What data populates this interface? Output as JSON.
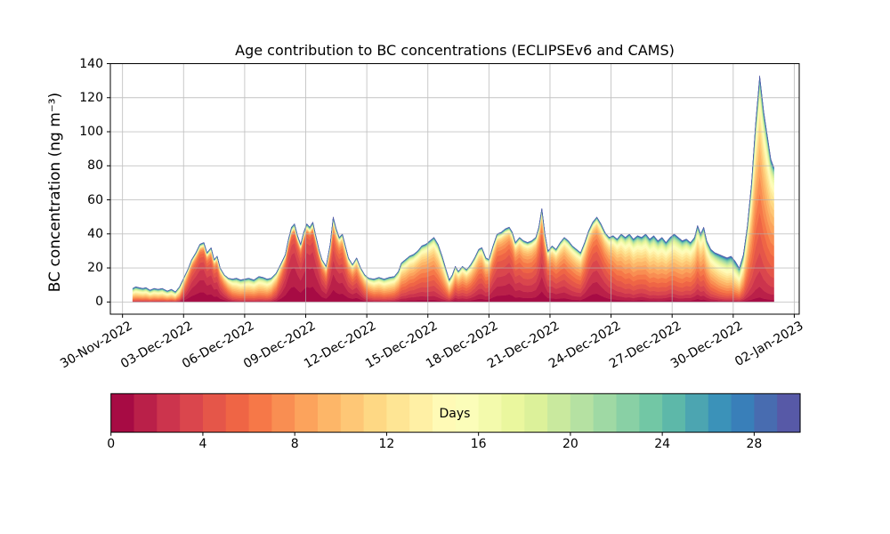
{
  "title": "Age contribution to BC concentrations (ECLIPSEv6 and CAMS)",
  "axes": {
    "ylabel": "BC concentration (ng m⁻³)",
    "yticks": [
      0,
      20,
      40,
      60,
      80,
      100,
      120,
      140
    ],
    "ylim": [
      -7.2,
      140
    ],
    "xlim_days": [
      -0.6,
      33.24
    ],
    "xticks": [
      {
        "day": 0,
        "label": "30-Nov-2022"
      },
      {
        "day": 3,
        "label": "03-Dec-2022"
      },
      {
        "day": 6,
        "label": "06-Dec-2022"
      },
      {
        "day": 9,
        "label": "09-Dec-2022"
      },
      {
        "day": 12,
        "label": "12-Dec-2022"
      },
      {
        "day": 15,
        "label": "15-Dec-2022"
      },
      {
        "day": 18,
        "label": "18-Dec-2022"
      },
      {
        "day": 21,
        "label": "21-Dec-2022"
      },
      {
        "day": 24,
        "label": "24-Dec-2022"
      },
      {
        "day": 27,
        "label": "27-Dec-2022"
      },
      {
        "day": 30,
        "label": "30-Dec-2022"
      },
      {
        "day": 33,
        "label": "02-Jan-2023"
      }
    ],
    "grid_color": "#b0b0b0",
    "spine_color": "#000000"
  },
  "colorbar": {
    "label": "Days",
    "ticks": [
      0,
      4,
      8,
      12,
      16,
      20,
      24,
      28
    ],
    "vmin": 0,
    "vmax": 30,
    "n_segments": 30
  },
  "colormap": {
    "name": "Spectral",
    "anchors": [
      "#9e0142",
      "#d53e4f",
      "#f46d43",
      "#fdae61",
      "#fee08b",
      "#ffffbf",
      "#e6f598",
      "#abdda4",
      "#66c2a5",
      "#3288bd",
      "#5e4fa2"
    ]
  },
  "chart_data": {
    "type": "area",
    "stacked": true,
    "n_age_bins": 30,
    "age_bin_width_days": 1,
    "stack_order": "youngest (0 days, red) at bottom to oldest (30 days, blue) on top",
    "x_unit": "days since 30-Nov-2022 00:00",
    "y_unit": "ng m-3",
    "samples_columns": [
      "day_offset",
      "total_BC_ng_m3",
      "fresh_fraction_age_0_4d",
      "mean_age_days_of_bulk"
    ],
    "samples": [
      [
        0.5,
        8,
        0.01,
        13
      ],
      [
        0.65,
        9,
        0.01,
        13
      ],
      [
        0.8,
        8.5,
        0.02,
        13
      ],
      [
        1.0,
        8,
        0.02,
        13
      ],
      [
        1.15,
        8.5,
        0.02,
        13
      ],
      [
        1.35,
        7,
        0.02,
        13
      ],
      [
        1.55,
        8,
        0.02,
        13
      ],
      [
        1.75,
        7.5,
        0.02,
        13
      ],
      [
        1.95,
        8,
        0.02,
        13
      ],
      [
        2.2,
        6.5,
        0.02,
        13
      ],
      [
        2.4,
        7.5,
        0.02,
        13
      ],
      [
        2.6,
        6,
        0.02,
        13
      ],
      [
        2.8,
        9,
        0.05,
        11
      ],
      [
        3.0,
        14,
        0.2,
        8
      ],
      [
        3.2,
        19,
        0.35,
        6
      ],
      [
        3.4,
        25,
        0.45,
        5
      ],
      [
        3.6,
        29,
        0.5,
        4.5
      ],
      [
        3.8,
        34,
        0.52,
        4
      ],
      [
        4.0,
        35,
        0.5,
        4
      ],
      [
        4.15,
        29,
        0.45,
        4.5
      ],
      [
        4.35,
        32,
        0.45,
        4.5
      ],
      [
        4.5,
        25,
        0.4,
        5
      ],
      [
        4.65,
        27,
        0.38,
        5
      ],
      [
        4.8,
        20,
        0.3,
        6
      ],
      [
        5.0,
        16,
        0.22,
        7
      ],
      [
        5.2,
        14,
        0.12,
        8.5
      ],
      [
        5.4,
        13.5,
        0.05,
        10
      ],
      [
        5.6,
        14,
        0.03,
        11
      ],
      [
        5.8,
        13,
        0.02,
        11
      ],
      [
        6.0,
        13.5,
        0.02,
        11
      ],
      [
        6.2,
        14,
        0.02,
        11
      ],
      [
        6.45,
        13,
        0.02,
        11
      ],
      [
        6.7,
        15,
        0.02,
        11
      ],
      [
        6.9,
        14.5,
        0.02,
        11
      ],
      [
        7.1,
        13.5,
        0.02,
        11
      ],
      [
        7.3,
        14,
        0.03,
        10
      ],
      [
        7.55,
        17,
        0.1,
        8
      ],
      [
        7.8,
        23,
        0.3,
        6
      ],
      [
        8.0,
        28,
        0.45,
        4.5
      ],
      [
        8.15,
        37,
        0.55,
        3.5
      ],
      [
        8.3,
        44,
        0.58,
        3
      ],
      [
        8.45,
        46,
        0.58,
        3
      ],
      [
        8.6,
        39,
        0.55,
        3.5
      ],
      [
        8.75,
        34,
        0.5,
        4
      ],
      [
        8.9,
        41,
        0.55,
        3.5
      ],
      [
        9.05,
        46,
        0.58,
        3
      ],
      [
        9.2,
        44,
        0.55,
        3
      ],
      [
        9.35,
        47,
        0.58,
        3
      ],
      [
        9.5,
        39,
        0.5,
        3.5
      ],
      [
        9.65,
        31,
        0.45,
        4
      ],
      [
        9.8,
        25,
        0.35,
        5
      ],
      [
        10.0,
        21,
        0.3,
        6
      ],
      [
        10.2,
        34,
        0.4,
        5
      ],
      [
        10.35,
        50,
        0.45,
        4.5
      ],
      [
        10.5,
        43,
        0.4,
        5
      ],
      [
        10.65,
        38,
        0.38,
        5
      ],
      [
        10.8,
        40,
        0.38,
        5
      ],
      [
        10.95,
        33,
        0.35,
        5.5
      ],
      [
        11.1,
        26,
        0.3,
        6
      ],
      [
        11.3,
        22,
        0.28,
        6.5
      ],
      [
        11.5,
        26,
        0.3,
        6.5
      ],
      [
        11.7,
        20,
        0.22,
        7
      ],
      [
        11.9,
        16,
        0.12,
        8
      ],
      [
        12.1,
        14,
        0.06,
        9
      ],
      [
        12.35,
        13.5,
        0.04,
        10
      ],
      [
        12.6,
        14.5,
        0.03,
        10
      ],
      [
        12.85,
        13.5,
        0.03,
        10.5
      ],
      [
        13.1,
        14.5,
        0.04,
        10.5
      ],
      [
        13.35,
        15,
        0.05,
        10
      ],
      [
        13.55,
        18,
        0.08,
        9.5
      ],
      [
        13.7,
        23,
        0.1,
        9
      ],
      [
        13.9,
        25,
        0.1,
        9
      ],
      [
        14.1,
        27,
        0.12,
        8.5
      ],
      [
        14.3,
        28,
        0.12,
        8.5
      ],
      [
        14.5,
        30,
        0.12,
        8
      ],
      [
        14.7,
        33,
        0.12,
        8
      ],
      [
        14.9,
        34,
        0.1,
        8
      ],
      [
        15.1,
        36,
        0.1,
        8
      ],
      [
        15.3,
        38,
        0.1,
        8
      ],
      [
        15.5,
        34,
        0.08,
        8.5
      ],
      [
        15.7,
        27,
        0.06,
        9
      ],
      [
        15.9,
        19,
        0.05,
        9.5
      ],
      [
        16.05,
        13,
        0.05,
        10
      ],
      [
        16.2,
        16,
        0.1,
        9
      ],
      [
        16.35,
        21,
        0.15,
        8
      ],
      [
        16.5,
        18,
        0.12,
        8
      ],
      [
        16.7,
        21,
        0.12,
        8
      ],
      [
        16.9,
        19,
        0.1,
        8
      ],
      [
        17.1,
        22,
        0.12,
        8
      ],
      [
        17.3,
        26,
        0.15,
        7.5
      ],
      [
        17.5,
        31,
        0.18,
        7
      ],
      [
        17.65,
        32,
        0.18,
        7
      ],
      [
        17.85,
        26,
        0.15,
        7.5
      ],
      [
        18.0,
        25,
        0.18,
        7
      ],
      [
        18.2,
        33,
        0.25,
        6
      ],
      [
        18.4,
        40,
        0.28,
        5.5
      ],
      [
        18.6,
        41,
        0.28,
        5.5
      ],
      [
        18.8,
        43,
        0.28,
        5.5
      ],
      [
        19.0,
        44,
        0.3,
        5
      ],
      [
        19.15,
        41,
        0.28,
        5.5
      ],
      [
        19.3,
        35,
        0.22,
        6
      ],
      [
        19.5,
        38,
        0.22,
        6
      ],
      [
        19.7,
        36,
        0.2,
        6.5
      ],
      [
        19.9,
        35,
        0.2,
        6.5
      ],
      [
        20.1,
        36,
        0.2,
        6.5
      ],
      [
        20.3,
        38,
        0.22,
        6
      ],
      [
        20.45,
        44,
        0.3,
        5.5
      ],
      [
        20.6,
        55,
        0.35,
        5
      ],
      [
        20.75,
        40,
        0.3,
        5.5
      ],
      [
        20.9,
        30,
        0.22,
        6
      ],
      [
        21.1,
        33,
        0.2,
        6.5
      ],
      [
        21.3,
        31,
        0.18,
        7
      ],
      [
        21.5,
        35,
        0.18,
        7
      ],
      [
        21.7,
        38,
        0.18,
        7
      ],
      [
        21.9,
        36,
        0.15,
        7.5
      ],
      [
        22.1,
        33,
        0.12,
        7.5
      ],
      [
        22.3,
        31,
        0.12,
        8
      ],
      [
        22.5,
        29,
        0.12,
        8
      ],
      [
        22.7,
        35,
        0.18,
        7
      ],
      [
        22.9,
        42,
        0.25,
        6
      ],
      [
        23.1,
        47,
        0.3,
        5.5
      ],
      [
        23.3,
        50,
        0.3,
        5.5
      ],
      [
        23.5,
        46,
        0.25,
        6
      ],
      [
        23.7,
        41,
        0.2,
        6.5
      ],
      [
        23.9,
        38,
        0.15,
        7
      ],
      [
        24.1,
        39,
        0.12,
        7.5
      ],
      [
        24.3,
        37,
        0.1,
        8
      ],
      [
        24.5,
        40,
        0.08,
        8.5
      ],
      [
        24.7,
        38,
        0.07,
        9
      ],
      [
        24.9,
        40,
        0.07,
        9
      ],
      [
        25.1,
        37,
        0.06,
        9.5
      ],
      [
        25.3,
        39,
        0.08,
        9.5
      ],
      [
        25.5,
        38,
        0.1,
        9.5
      ],
      [
        25.7,
        40,
        0.07,
        9.5
      ],
      [
        25.9,
        37,
        0.06,
        10
      ],
      [
        26.1,
        39,
        0.06,
        10
      ],
      [
        26.3,
        36,
        0.06,
        10
      ],
      [
        26.5,
        38,
        0.06,
        10
      ],
      [
        26.7,
        35,
        0.08,
        10
      ],
      [
        26.9,
        38,
        0.1,
        10
      ],
      [
        27.1,
        40,
        0.08,
        10
      ],
      [
        27.3,
        38,
        0.06,
        10
      ],
      [
        27.5,
        36,
        0.06,
        10
      ],
      [
        27.7,
        37,
        0.07,
        9.5
      ],
      [
        27.9,
        35,
        0.07,
        9.5
      ],
      [
        28.1,
        38,
        0.1,
        9
      ],
      [
        28.25,
        45,
        0.12,
        8.5
      ],
      [
        28.4,
        40,
        0.1,
        9
      ],
      [
        28.55,
        44,
        0.1,
        9
      ],
      [
        28.7,
        36,
        0.08,
        9.5
      ],
      [
        28.9,
        31,
        0.06,
        10.5
      ],
      [
        29.1,
        29,
        0.05,
        11
      ],
      [
        29.3,
        28,
        0.04,
        12
      ],
      [
        29.5,
        27,
        0.03,
        12.5
      ],
      [
        29.7,
        26,
        0.03,
        13
      ],
      [
        29.9,
        27,
        0.03,
        13
      ],
      [
        30.1,
        24,
        0.03,
        13.5
      ],
      [
        30.3,
        20,
        0.03,
        13.5
      ],
      [
        30.5,
        28,
        0.04,
        11
      ],
      [
        30.7,
        45,
        0.05,
        9
      ],
      [
        30.9,
        70,
        0.05,
        8.5
      ],
      [
        31.1,
        105,
        0.05,
        8
      ],
      [
        31.3,
        133,
        0.05,
        8
      ],
      [
        31.5,
        112,
        0.04,
        8.5
      ],
      [
        31.7,
        96,
        0.04,
        9
      ],
      [
        31.85,
        84,
        0.04,
        9
      ],
      [
        32.0,
        79,
        0.04,
        9
      ]
    ]
  }
}
